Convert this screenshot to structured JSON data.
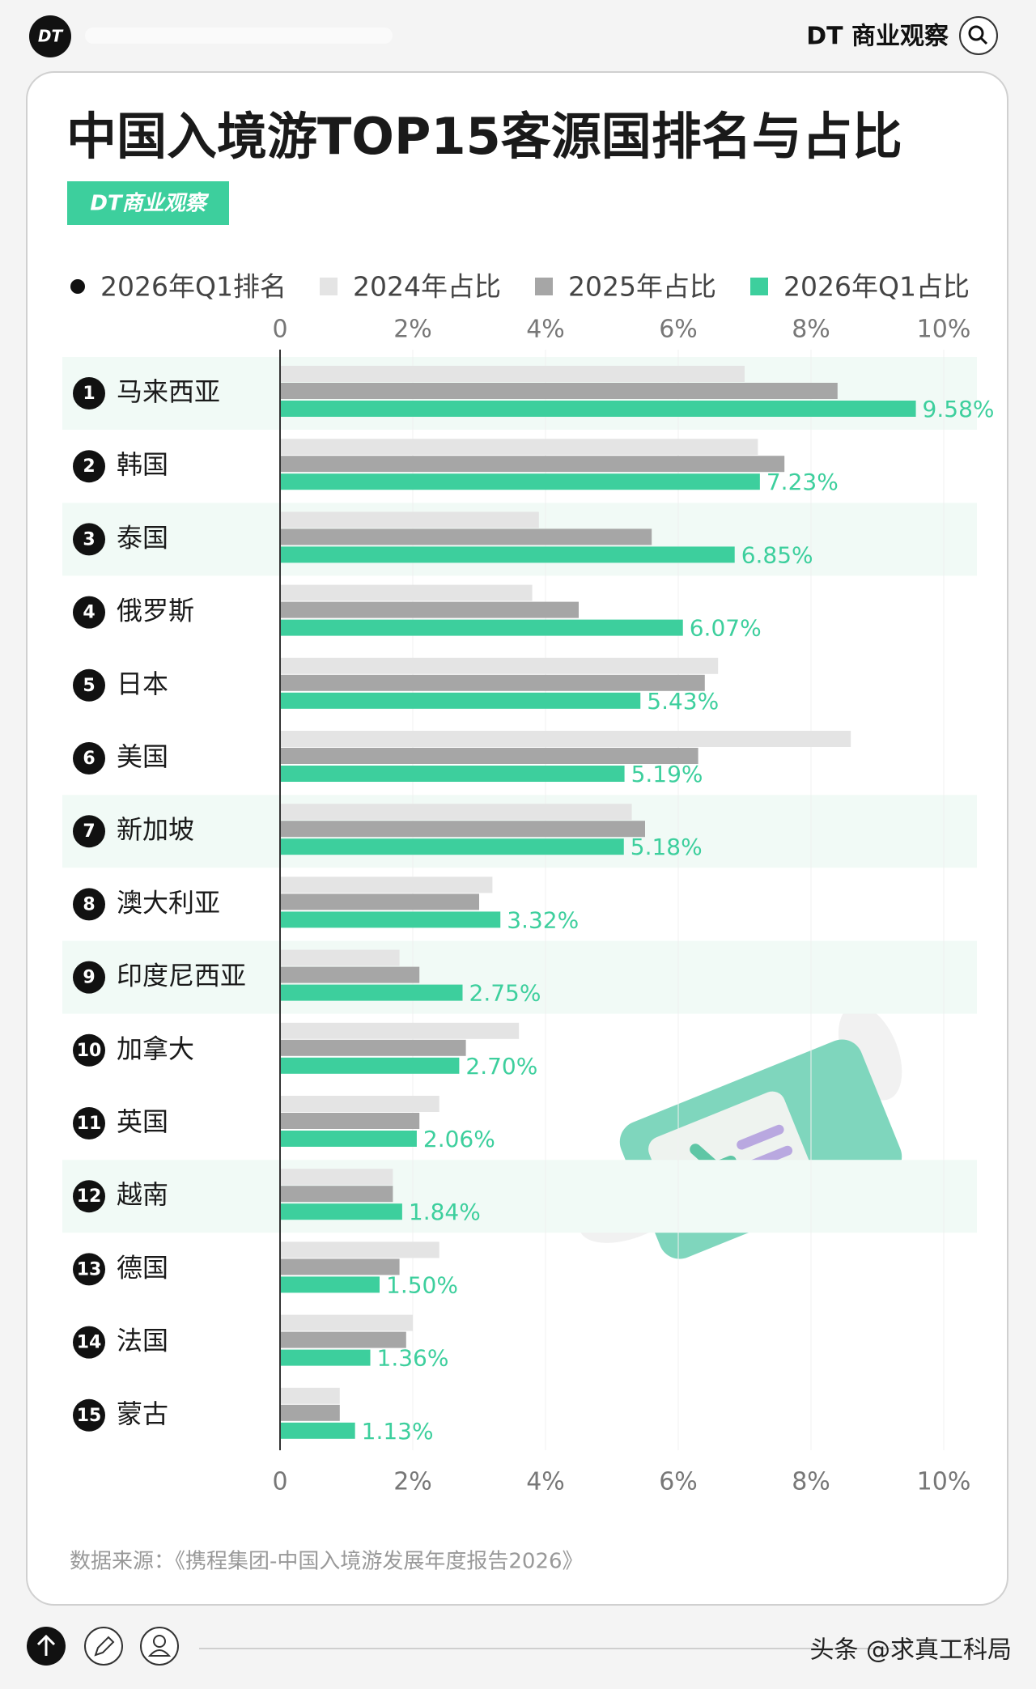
{
  "header": {
    "brand": "DT 商业观察"
  },
  "chart_data": {
    "type": "bar",
    "orientation": "horizontal",
    "title": "中国入境游TOP15客源国排名与占比",
    "badge": "DT商业观察",
    "rank_legend": "2026年Q1排名",
    "ranks": [
      1,
      2,
      3,
      4,
      5,
      6,
      7,
      8,
      9,
      10,
      11,
      12,
      13,
      14,
      15
    ],
    "categories": [
      "马来西亚",
      "韩国",
      "泰国",
      "俄罗斯",
      "日本",
      "美国",
      "新加坡",
      "澳大利亚",
      "印度尼西亚",
      "加拿大",
      "英国",
      "越南",
      "德国",
      "法国",
      "蒙古"
    ],
    "series": [
      {
        "name": "2024年占比",
        "color": "#e4e4e4",
        "values": [
          7.0,
          7.2,
          3.9,
          3.8,
          6.6,
          8.6,
          5.3,
          3.2,
          1.8,
          3.6,
          2.4,
          1.7,
          2.4,
          2.0,
          0.9
        ]
      },
      {
        "name": "2025年占比",
        "color": "#a6a6a6",
        "values": [
          8.4,
          7.6,
          5.6,
          4.5,
          6.4,
          6.3,
          5.5,
          3.0,
          2.1,
          2.8,
          2.1,
          1.7,
          1.8,
          1.9,
          0.9
        ]
      },
      {
        "name": "2026年Q1占比",
        "color": "#3dcf9d",
        "values": [
          9.58,
          7.23,
          6.85,
          6.07,
          5.43,
          5.19,
          5.18,
          3.32,
          2.75,
          2.7,
          2.06,
          1.84,
          1.5,
          1.36,
          1.13
        ],
        "value_labels": [
          "9.58%",
          "7.23%",
          "6.85%",
          "6.07%",
          "5.43%",
          "5.19%",
          "5.18%",
          "3.32%",
          "2.75%",
          "2.70%",
          "2.06%",
          "1.84%",
          "1.50%",
          "1.36%",
          "1.13%"
        ]
      }
    ],
    "xlim": [
      0,
      10
    ],
    "xticks": [
      0,
      {
        "value": 2,
        "label": "2%"
      },
      {
        "value": 4,
        "label": "4%"
      },
      {
        "value": 6,
        "label": "6%"
      },
      {
        "value": 8,
        "label": "8%"
      },
      {
        "value": 10,
        "label": "10%"
      }
    ],
    "grid": true,
    "source": "数据来源：《携程集团-中国入境游发展年度报告2026》"
  },
  "footer": {
    "author": "头条 @求真工科局"
  }
}
